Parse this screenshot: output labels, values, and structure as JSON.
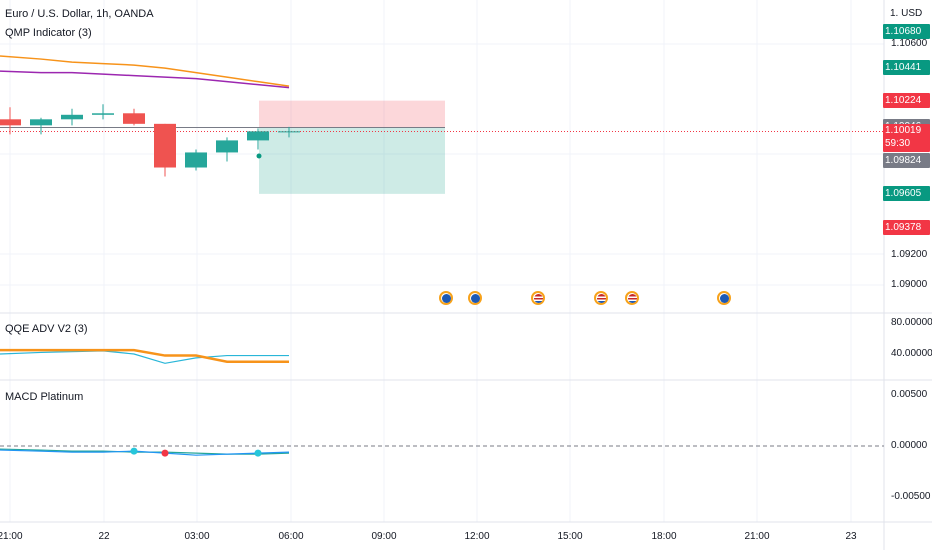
{
  "main_legend": {
    "symbol": "Euro / U.S. Dollar, 1h, OANDA",
    "indicator": "QMP Indicator (3)"
  },
  "currency_label": "1. USD",
  "price_axis": {
    "ticks": [
      {
        "label": "1.10600",
        "value": 1.106
      },
      {
        "label": "1.09200",
        "value": 1.092
      },
      {
        "label": "1.09000",
        "value": 1.09
      }
    ],
    "tags": [
      {
        "label": "1.10680",
        "value": 1.1068,
        "color": "#089981"
      },
      {
        "label": "1.10441",
        "value": 1.10441,
        "color": "#089981"
      },
      {
        "label": "1.10224",
        "value": 1.10224,
        "color": "#f23645"
      },
      {
        "label": "1.10046",
        "value": 1.10046,
        "color": "#787b86"
      },
      {
        "label": "1.10019",
        "value": 1.10019,
        "color": "#f23645",
        "sub": "59:30"
      },
      {
        "label": "1.09824",
        "value": 1.09824,
        "color": "#787b86"
      },
      {
        "label": "1.09605",
        "value": 1.09605,
        "color": "#089981"
      },
      {
        "label": "1.09378",
        "value": 1.09378,
        "color": "#f23645"
      }
    ]
  },
  "qqe_panel": {
    "title": "QQE ADV V2 (3)",
    "ticks": [
      {
        "label": "80.00000",
        "value": 80
      },
      {
        "label": "40.00000",
        "value": 40
      }
    ]
  },
  "macd_panel": {
    "title": "MACD Platinum",
    "ticks": [
      {
        "label": "0.00500",
        "value": 0.005
      },
      {
        "label": "0.00000",
        "value": 0.0
      },
      {
        "label": "-0.00500",
        "value": -0.005
      }
    ]
  },
  "time_axis": [
    "21:00",
    "22",
    "03:00",
    "06:00",
    "09:00",
    "12:00",
    "15:00",
    "18:00",
    "21:00",
    "23"
  ],
  "colors": {
    "up": "#26a69a",
    "down": "#ef5350",
    "accent_orange": "#f7931a",
    "purple": "#9c27b0"
  },
  "chart_data": {
    "type": "candlestick",
    "candles": [
      {
        "o": 1.101,
        "h": 1.1018,
        "l": 1.1,
        "c": 1.1006
      },
      {
        "o": 1.1006,
        "h": 1.1011,
        "l": 1.1,
        "c": 1.101
      },
      {
        "o": 1.101,
        "h": 1.1017,
        "l": 1.1006,
        "c": 1.1013
      },
      {
        "o": 1.1013,
        "h": 1.102,
        "l": 1.101,
        "c": 1.1014
      },
      {
        "o": 1.1014,
        "h": 1.1017,
        "l": 1.1006,
        "c": 1.1007
      },
      {
        "o": 1.1007,
        "h": 1.1007,
        "l": 1.0972,
        "c": 1.0978
      },
      {
        "o": 1.0978,
        "h": 1.099,
        "l": 1.0976,
        "c": 1.0988
      },
      {
        "o": 1.0988,
        "h": 1.0998,
        "l": 1.0982,
        "c": 1.0996
      },
      {
        "o": 1.0996,
        "h": 1.1004,
        "l": 1.099,
        "c": 1.1002
      },
      {
        "o": 1.1002,
        "h": 1.1005,
        "l": 1.0998,
        "c": 1.1002
      }
    ],
    "ma_orange": [
      1.1052,
      1.105,
      1.1048,
      1.1047,
      1.1046,
      1.1044,
      1.1041,
      1.1038,
      1.1035,
      1.1032
    ],
    "ma_purple": [
      1.1042,
      1.1041,
      1.1041,
      1.104,
      1.1039,
      1.1038,
      1.1037,
      1.1035,
      1.1033,
      1.1031
    ],
    "position": {
      "entry": 1.10046,
      "stop": 1.10224,
      "target": 1.09605
    },
    "qqe_orange": [
      45,
      45,
      45,
      45,
      45,
      38,
      38,
      30,
      30,
      30
    ],
    "qqe_blue": [
      40,
      42,
      43,
      44,
      40,
      28,
      35,
      38,
      38,
      38
    ],
    "macd_line": [
      -0.0004,
      -0.0005,
      -0.0006,
      -0.0006,
      -0.0005,
      -0.0007,
      -0.0009,
      -0.0008,
      -0.0007,
      -0.0006
    ],
    "macd_signal": [
      -0.0003,
      -0.0004,
      -0.0005,
      -0.0005,
      -0.0006,
      -0.0006,
      -0.0007,
      -0.0008,
      -0.0008,
      -0.0007
    ]
  }
}
